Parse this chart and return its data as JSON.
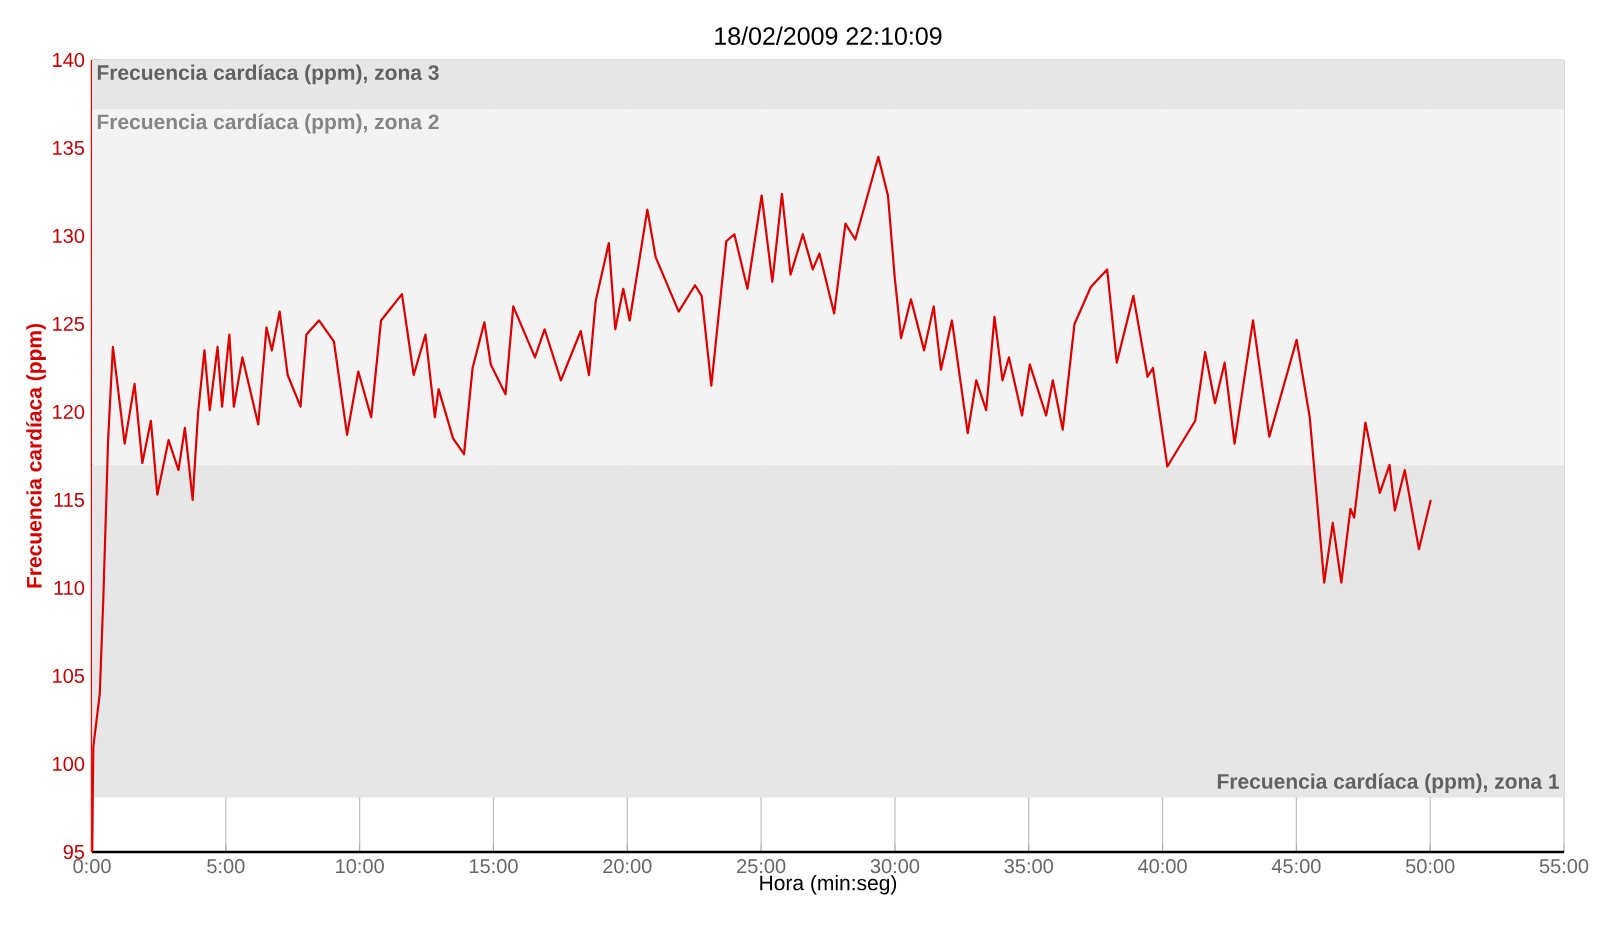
{
  "chart_data": {
    "type": "line",
    "title": "18/02/2009 22:10:09",
    "xlabel": "Hora (min:seg)",
    "ylabel": "Frecuencia cardíaca (ppm)",
    "xlim": [
      0,
      55
    ],
    "ylim": [
      95,
      140
    ],
    "xticks": [
      {
        "value": 0,
        "label": "0:00"
      },
      {
        "value": 5,
        "label": "5:00"
      },
      {
        "value": 10,
        "label": "10:00"
      },
      {
        "value": 15,
        "label": "15:00"
      },
      {
        "value": 20,
        "label": "20:00"
      },
      {
        "value": 25,
        "label": "25:00"
      },
      {
        "value": 30,
        "label": "30:00"
      },
      {
        "value": 35,
        "label": "35:00"
      },
      {
        "value": 40,
        "label": "40:00"
      },
      {
        "value": 45,
        "label": "45:00"
      },
      {
        "value": 50,
        "label": "50:00"
      },
      {
        "value": 55,
        "label": "55:00"
      }
    ],
    "yticks": [
      95,
      100,
      105,
      110,
      115,
      120,
      125,
      130,
      135,
      140
    ],
    "grid": true,
    "marker": "none",
    "line_style": "solid",
    "bands": [
      {
        "axis": "y",
        "from": 98.1,
        "to": 117,
        "label": "Frecuencia cardíaca (ppm), zona 1",
        "color": "#e6e6e6"
      },
      {
        "axis": "y",
        "from": 117,
        "to": 137.2,
        "label": "Frecuencia cardíaca (ppm), zona 2",
        "color": "#f3f3f3"
      },
      {
        "axis": "y",
        "from": 137.2,
        "to": 140,
        "label": "Frecuencia cardíaca (ppm), zona 3",
        "color": "#e6e6e6"
      }
    ],
    "series": [
      {
        "color": "#e00000",
        "x": [
          0,
          0.05,
          0.29,
          0.42,
          0.54,
          0.6,
          0.78,
          1.22,
          1.59,
          1.88,
          2.2,
          2.44,
          2.86,
          3.23,
          3.47,
          3.76,
          3.96,
          4.2,
          4.4,
          4.69,
          4.86,
          5.13,
          5.3,
          5.62,
          6.21,
          6.52,
          6.72,
          7.01,
          7.31,
          7.79,
          8.01,
          8.48,
          9.04,
          9.53,
          9.95,
          10.43,
          10.8,
          11.58,
          12.02,
          12.46,
          12.81,
          12.95,
          13.49,
          13.9,
          14.22,
          14.66,
          14.9,
          15.45,
          15.74,
          16.55,
          16.91,
          17.52,
          18.26,
          18.57,
          18.82,
          19.31,
          19.55,
          19.85,
          20.09,
          20.75,
          21.06,
          21.92,
          22.53,
          22.78,
          23.14,
          23.7,
          24.0,
          24.49,
          25.02,
          25.42,
          25.78,
          26.1,
          26.56,
          26.93,
          27.18,
          27.73,
          28.15,
          28.52,
          29.38,
          29.74,
          29.99,
          30.23,
          30.6,
          31.09,
          31.45,
          31.72,
          32.13,
          32.72,
          33.04,
          33.41,
          33.72,
          34.02,
          34.26,
          34.75,
          35.04,
          35.65,
          35.9,
          36.27,
          36.71,
          37.32,
          37.93,
          38.29,
          38.91,
          39.44,
          39.64,
          40.18,
          41.22,
          41.59,
          41.96,
          42.32,
          42.69,
          43.38,
          43.99,
          45.01,
          45.5,
          46.04,
          46.36,
          46.68,
          47.02,
          47.16,
          47.58,
          48.12,
          48.48,
          48.68,
          49.05,
          49.58,
          50.02
        ],
        "values": [
          95,
          101,
          104,
          109.3,
          115.3,
          118.4,
          123.7,
          118.2,
          121.6,
          117.1,
          119.5,
          115.3,
          118.4,
          116.7,
          119.1,
          115.0,
          119.9,
          123.5,
          120.1,
          123.7,
          120.3,
          124.4,
          120.3,
          123.1,
          119.3,
          124.8,
          123.5,
          125.7,
          122.1,
          120.3,
          124.4,
          125.2,
          124.0,
          118.7,
          122.3,
          119.7,
          125.2,
          126.7,
          122.1,
          124.4,
          119.7,
          121.3,
          118.5,
          117.6,
          122.5,
          125.1,
          122.7,
          121.0,
          126.0,
          123.1,
          124.7,
          121.8,
          124.6,
          122.1,
          126.3,
          129.6,
          124.7,
          127.0,
          125.2,
          131.5,
          128.8,
          125.7,
          127.2,
          126.6,
          121.5,
          129.7,
          130.1,
          127.0,
          132.3,
          127.4,
          132.4,
          127.8,
          130.1,
          128.1,
          129.0,
          125.6,
          130.7,
          129.8,
          134.5,
          132.3,
          127.7,
          124.2,
          126.4,
          123.5,
          126.0,
          122.4,
          125.2,
          118.8,
          121.8,
          120.1,
          125.4,
          121.8,
          123.1,
          119.8,
          122.7,
          119.8,
          121.8,
          119.0,
          125.0,
          127.1,
          128.1,
          122.8,
          126.6,
          122.0,
          122.5,
          116.9,
          119.5,
          123.4,
          120.5,
          122.8,
          118.2,
          125.2,
          118.6,
          124.1,
          119.7,
          110.3,
          113.7,
          110.3,
          114.5,
          114.0,
          119.4,
          115.4,
          117.0,
          114.4,
          116.7,
          112.2,
          115.0
        ]
      }
    ]
  }
}
